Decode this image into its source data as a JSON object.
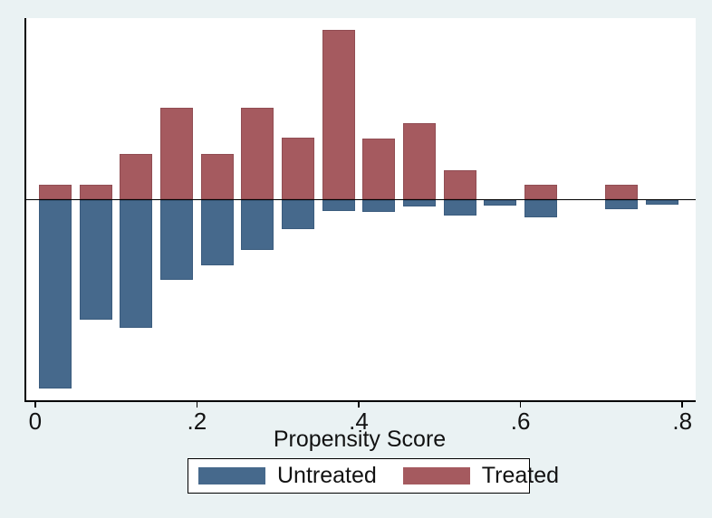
{
  "figure": {
    "background_color": "#eaf2f3",
    "plot_background_color": "#ffffff",
    "axis_color": "#000000",
    "text_color": "#121212"
  },
  "chart_data": {
    "type": "bar",
    "variant": "mirrored-propensity-histogram",
    "title": "",
    "xlabel": "Propensity Score",
    "ylabel": "",
    "y_axis_note": "no y-axis ticks or labels shown; bar lengths given in relative (pixel) units",
    "xlim": [
      0,
      0.82
    ],
    "bin_width": 0.05,
    "bin_centers": [
      0.025,
      0.075,
      0.125,
      0.175,
      0.225,
      0.275,
      0.325,
      0.375,
      0.425,
      0.475,
      0.525,
      0.575,
      0.625,
      0.675,
      0.725,
      0.775
    ],
    "x_ticks": [
      {
        "value": 0.0,
        "label": "0"
      },
      {
        "value": 0.2,
        "label": ".2"
      },
      {
        "value": 0.4,
        "label": ".4"
      },
      {
        "value": 0.6,
        "label": ".6"
      },
      {
        "value": 0.8,
        "label": ".8"
      }
    ],
    "series": [
      {
        "name": "Treated",
        "direction": "up",
        "color": "#a55a5f",
        "heights_rel": [
          16,
          16,
          50,
          101,
          50,
          101,
          68,
          187,
          67,
          84,
          32,
          0,
          16,
          0,
          16,
          0
        ]
      },
      {
        "name": "Untreated",
        "direction": "down",
        "color": "#46698c",
        "heights_rel": [
          208,
          132,
          141,
          88,
          72,
          55,
          32,
          12,
          13,
          7,
          17,
          6,
          19,
          0,
          10,
          5
        ]
      }
    ],
    "legend_position": "bottom-center"
  },
  "legend": {
    "items": [
      {
        "label": "Untreated",
        "color": "#46698c"
      },
      {
        "label": "Treated",
        "color": "#a55a5f"
      }
    ]
  }
}
